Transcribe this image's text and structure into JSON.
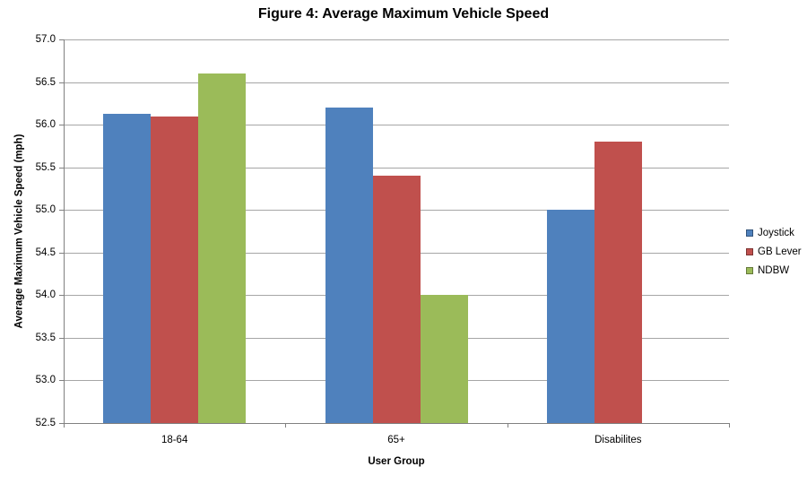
{
  "chart_data": {
    "type": "bar",
    "title": "Figure 4: Average Maximum Vehicle Speed",
    "xlabel": "User Group",
    "ylabel": "Average Maximum Vehicle Speed (mph)",
    "categories": [
      "18-64",
      "65+",
      "Disabilites"
    ],
    "series": [
      {
        "name": "Joystick",
        "color": "#4F81BD",
        "values": [
          56.13,
          56.2,
          55.0
        ]
      },
      {
        "name": "GB Lever",
        "color": "#C0504D",
        "values": [
          56.1,
          55.4,
          55.8
        ]
      },
      {
        "name": "NDBW",
        "color": "#9BBB59",
        "values": [
          56.6,
          54.0,
          null
        ]
      }
    ],
    "ylim": [
      52.5,
      57.0
    ],
    "ytick_step": 0.5,
    "ytick_labels": [
      "57.0",
      "56.5",
      "56.0",
      "55.5",
      "55.0",
      "54.5",
      "54.0",
      "53.5",
      "53.0",
      "52.5"
    ],
    "grid": true,
    "legend_position": "right"
  },
  "style": {
    "gridline_color": "#A6A6A6",
    "axis_color": "#808080",
    "background": "#FFFFFF",
    "text_color": "#000000"
  }
}
